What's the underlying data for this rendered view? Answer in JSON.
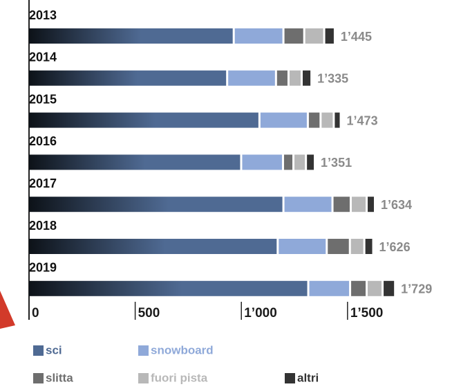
{
  "chart_data": {
    "type": "stacked-bar-horizontal",
    "categories": [
      "2013",
      "2014",
      "2015",
      "2016",
      "2017",
      "2018",
      "2019"
    ],
    "series": [
      {
        "name": "sci",
        "color": "#4f6a93",
        "values": [
          969,
          938,
          1090,
          1004,
          1203,
          1176,
          1320
        ]
      },
      {
        "name": "snowboard",
        "color": "#8fa9d9",
        "values": [
          234,
          230,
          228,
          197,
          231,
          231,
          197
        ]
      },
      {
        "name": "slitta",
        "color": "#6e6e6e",
        "values": [
          98,
          59,
          60,
          49,
          86,
          109,
          78
        ]
      },
      {
        "name": "fuori pista",
        "color": "#b8b8b8",
        "values": [
          94,
          62,
          62,
          59,
          75,
          68,
          75
        ]
      },
      {
        "name": "altri",
        "color": "#333333",
        "values": [
          50,
          46,
          33,
          42,
          39,
          42,
          59
        ]
      }
    ],
    "totals": {
      "values": [
        1445,
        1335,
        1473,
        1351,
        1634,
        1626,
        1729
      ],
      "value_labels": [
        "1’445",
        "1’335",
        "1’473",
        "1’351",
        "1’634",
        "1’626",
        "1’729"
      ]
    },
    "xlim": [
      0,
      1800
    ],
    "xticks": [
      0,
      500,
      {
        "value": 1000,
        "label": "1’000"
      },
      {
        "value": 1500,
        "label": "1’500"
      }
    ]
  }
}
